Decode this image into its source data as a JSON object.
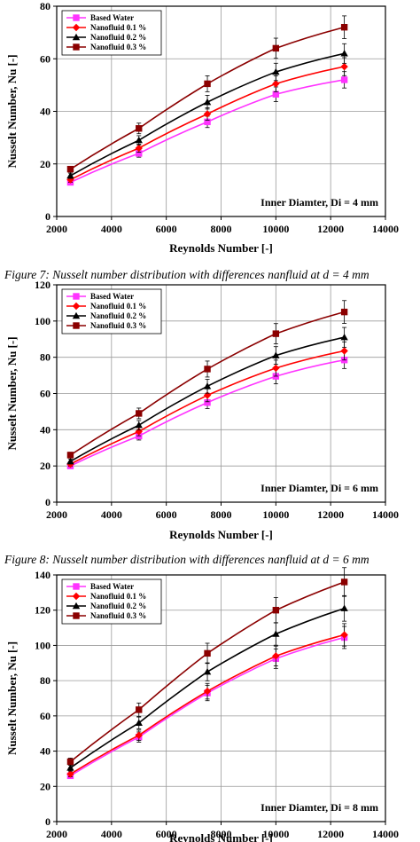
{
  "chart_data": [
    {
      "type": "line",
      "xlabel": "Reynolds Number [-]",
      "ylabel": "Nusselt Number, Nu [-]",
      "xlim": [
        2000,
        14000
      ],
      "ylim": [
        0,
        80
      ],
      "xticks": [
        2000,
        4000,
        6000,
        8000,
        10000,
        12000,
        14000
      ],
      "yticks": [
        0,
        20,
        40,
        60,
        80
      ],
      "grid": true,
      "legend": "top-left",
      "annotation": "Inner Diamter, Di = 4 mm",
      "caption": "Figure 7: Nusselt number distribution with differences nanfluid at d = 4 mm",
      "x": [
        2500,
        5000,
        7500,
        10000,
        12500
      ],
      "series": [
        {
          "name": "Based Water",
          "color": "#ff33ff",
          "marker": "square",
          "values": [
            13,
            24,
            36,
            46.5,
            52
          ]
        },
        {
          "name": "Nanofluid 0.1 %",
          "color": "#ff0000",
          "marker": "diamond",
          "values": [
            14,
            26,
            39,
            50.5,
            57
          ]
        },
        {
          "name": "Nanofluid 0.2 %",
          "color": "#000000",
          "marker": "triangle",
          "values": [
            15.5,
            29,
            43.5,
            55,
            62
          ]
        },
        {
          "name": "Nanofluid 0.3 %",
          "color": "#8b0000",
          "marker": "square",
          "values": [
            18,
            33.5,
            50.5,
            64,
            72
          ]
        }
      ]
    },
    {
      "type": "line",
      "xlabel": "Reynolds Number [-]",
      "ylabel": "Nusselt Number, Nu [-]",
      "xlim": [
        2000,
        14000
      ],
      "ylim": [
        0,
        120
      ],
      "xticks": [
        2000,
        4000,
        6000,
        8000,
        10000,
        12000,
        14000
      ],
      "yticks": [
        0,
        20,
        40,
        60,
        80,
        100,
        120
      ],
      "grid": true,
      "legend": "top-left",
      "annotation": "Inner Diamter, Di = 6 mm",
      "caption": "Figure 8: Nusselt number distribution with differences nanfluid at d = 6 mm",
      "x": [
        2500,
        5000,
        7500,
        10000,
        12500
      ],
      "series": [
        {
          "name": "Based Water",
          "color": "#ff33ff",
          "marker": "square",
          "values": [
            20,
            36.5,
            55,
            69.5,
            78.5
          ]
        },
        {
          "name": "Nanofluid 0.1 %",
          "color": "#ff0000",
          "marker": "diamond",
          "values": [
            21,
            39,
            59,
            74,
            83.5
          ]
        },
        {
          "name": "Nanofluid 0.2 %",
          "color": "#000000",
          "marker": "triangle",
          "values": [
            22.5,
            42.5,
            64,
            81,
            91
          ]
        },
        {
          "name": "Nanofluid 0.3 %",
          "color": "#8b0000",
          "marker": "square",
          "values": [
            26,
            49,
            73.5,
            93,
            105
          ]
        }
      ]
    },
    {
      "type": "line",
      "xlabel": "Reynolds Number [-]",
      "ylabel": "Nusselt Number, Nu [-]",
      "xlim": [
        2000,
        14000
      ],
      "ylim": [
        0,
        140
      ],
      "xticks": [
        2000,
        4000,
        6000,
        8000,
        10000,
        12000,
        14000
      ],
      "yticks": [
        0,
        20,
        40,
        60,
        80,
        100,
        120,
        140
      ],
      "grid": true,
      "legend": "top-left",
      "annotation": "Inner Diamter, Di = 8 mm",
      "caption": "",
      "x": [
        2500,
        5000,
        7500,
        10000,
        12500
      ],
      "series": [
        {
          "name": "Based Water",
          "color": "#ff33ff",
          "marker": "square",
          "values": [
            26,
            48,
            73,
            92.5,
            104.5
          ]
        },
        {
          "name": "Nanofluid 0.1 %",
          "color": "#ff0000",
          "marker": "diamond",
          "values": [
            27,
            49,
            74,
            94,
            106
          ]
        },
        {
          "name": "Nanofluid 0.2 %",
          "color": "#000000",
          "marker": "triangle",
          "values": [
            30.5,
            56,
            85,
            106.5,
            121
          ]
        },
        {
          "name": "Nanofluid 0.3 %",
          "color": "#8b0000",
          "marker": "square",
          "values": [
            34,
            63.5,
            95.5,
            120,
            136
          ]
        }
      ]
    }
  ]
}
